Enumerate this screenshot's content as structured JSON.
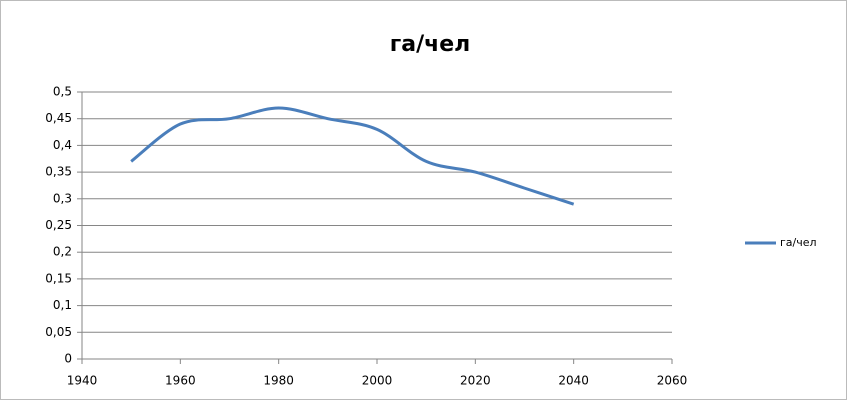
{
  "chart_data": {
    "type": "line",
    "title": "га/чел",
    "x": [
      1950,
      1960,
      1970,
      1980,
      1990,
      2000,
      2010,
      2020,
      2030,
      2040
    ],
    "series": [
      {
        "name": "га/чел",
        "color": "#4a7ebb",
        "values": [
          0.37,
          0.44,
          0.45,
          0.47,
          0.45,
          0.43,
          0.37,
          0.35,
          0.32,
          0.29
        ]
      }
    ],
    "xlim": [
      1940,
      2060
    ],
    "xticks": [
      1940,
      1960,
      1980,
      2000,
      2020,
      2040,
      2060
    ],
    "ylim": [
      0,
      0.5
    ],
    "yticks": [
      0,
      {
        "value": 0.05,
        "label": "0,05"
      },
      {
        "value": 0.1,
        "label": "0,1"
      },
      {
        "value": 0.15,
        "label": "0,15"
      },
      {
        "value": 0.2,
        "label": "0,2"
      },
      {
        "value": 0.25,
        "label": "0,25"
      },
      {
        "value": 0.3,
        "label": "0,3"
      },
      {
        "value": 0.35,
        "label": "0,35"
      },
      {
        "value": 0.4,
        "label": "0,4"
      },
      {
        "value": 0.45,
        "label": "0,45"
      },
      {
        "value": 0.5,
        "label": "0,5"
      }
    ],
    "grid": true,
    "smooth": true,
    "legend": "right"
  }
}
